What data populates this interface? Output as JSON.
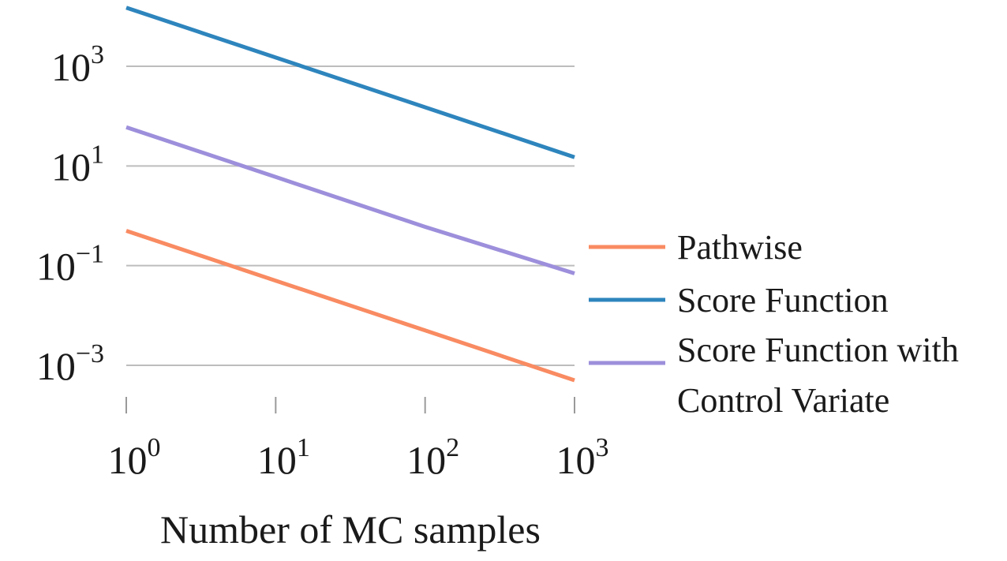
{
  "chart_data": {
    "type": "line",
    "title": "",
    "xlabel": "Number of MC samples",
    "ylabel": "",
    "xscale": "log",
    "yscale": "log",
    "xlim": [
      1,
      1000
    ],
    "ylim": [
      0.0003,
      20000
    ],
    "xticks": [
      {
        "value": 1,
        "base": "10",
        "exp": "0"
      },
      {
        "value": 10,
        "base": "10",
        "exp": "1"
      },
      {
        "value": 100,
        "base": "10",
        "exp": "2"
      },
      {
        "value": 1000,
        "base": "10",
        "exp": "3"
      }
    ],
    "yticks": [
      {
        "value": 0.001,
        "base": "10",
        "exp": "−3"
      },
      {
        "value": 0.1,
        "base": "10",
        "exp": "−1"
      },
      {
        "value": 10,
        "base": "10",
        "exp": "1"
      },
      {
        "value": 1000,
        "base": "10",
        "exp": "3"
      }
    ],
    "grid": "horizontal",
    "legend_position": "right",
    "series": [
      {
        "name": "Pathwise",
        "color": "#f98b62",
        "x": [
          1,
          10,
          100,
          1000
        ],
        "y": [
          0.5,
          0.05,
          0.005,
          0.0005
        ]
      },
      {
        "name": "Score Function",
        "color": "#2e85bd",
        "x": [
          1,
          10,
          100,
          1000
        ],
        "y": [
          15000,
          1500,
          150,
          15
        ]
      },
      {
        "name": "Score Function with Control Variate",
        "name_lines": [
          "Score Function with",
          "Control Variate"
        ],
        "color": "#9d8fdb",
        "x": [
          1,
          10,
          100,
          1000
        ],
        "y": [
          60,
          6,
          0.6,
          0.07
        ]
      }
    ]
  }
}
